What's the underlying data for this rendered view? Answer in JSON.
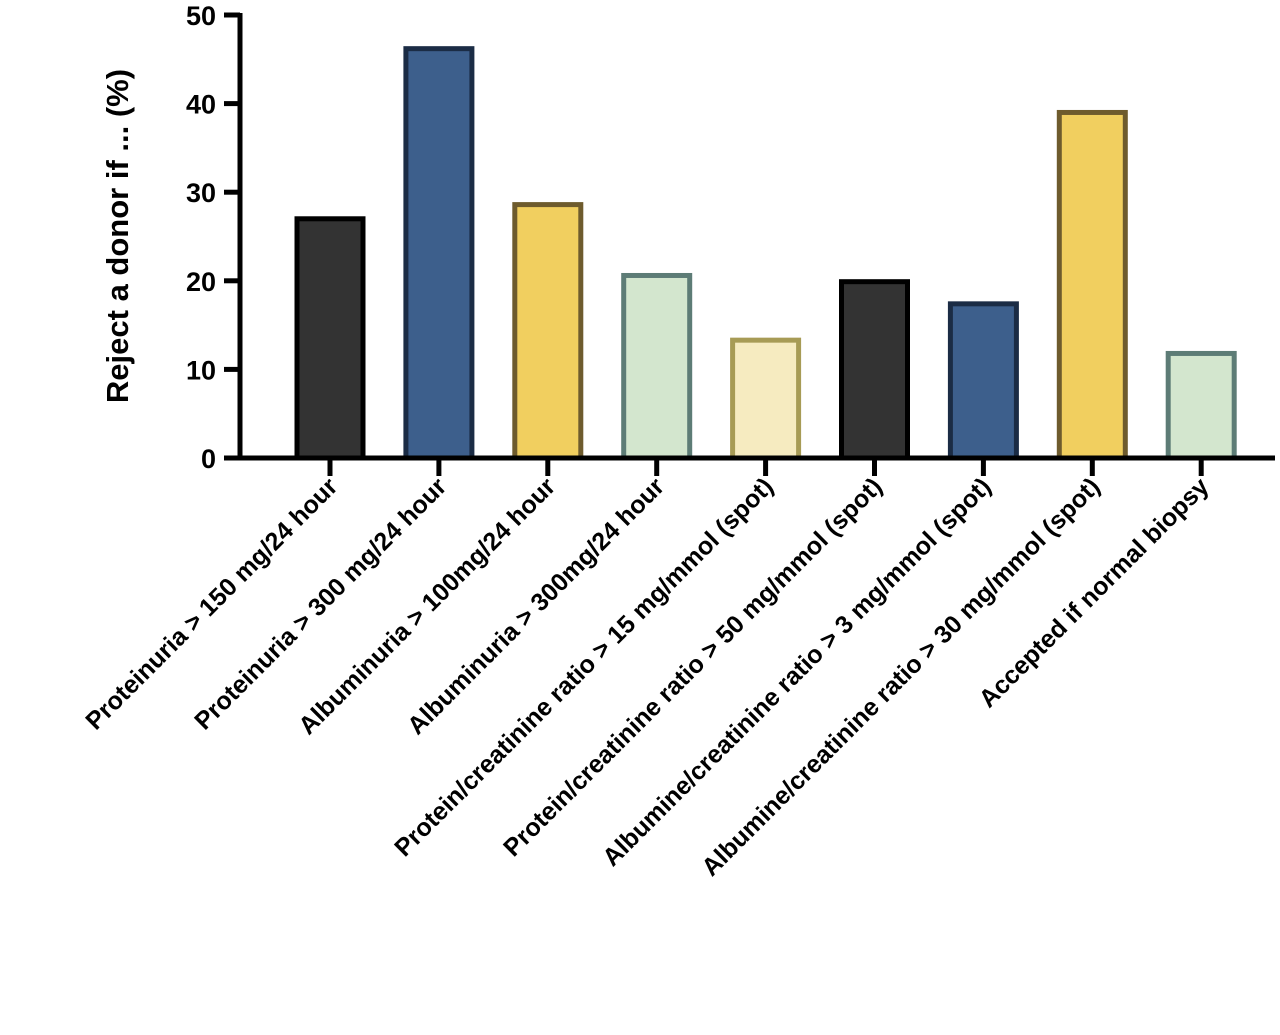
{
  "chart_data": {
    "type": "bar",
    "title": "",
    "xlabel": "",
    "ylabel": "Reject a donor if ... (%)",
    "ylim": [
      0,
      50
    ],
    "yticks": [
      0,
      10,
      20,
      30,
      40,
      50
    ],
    "grid": false,
    "categories": [
      "Proteinuria > 150 mg/24 hour",
      "Proteinuria > 300 mg/24 hour",
      "Albuminuria > 100mg/24 hour",
      "Albuminuria > 300mg/24 hour",
      "Protein/creatinine ratio > 15 mg/mmol (spot)",
      "Protein/creatinine ratio > 50 mg/mmol (spot)",
      "Albumine/creatinine ratio > 3 mg/mmol (spot)",
      "Albumine/creatinine ratio > 30 mg/mmol (spot)",
      "Accepted if normal biopsy"
    ],
    "values": [
      27,
      46.2,
      28.6,
      20.6,
      13.3,
      19.9,
      17.4,
      39,
      11.8
    ],
    "bar_fills": [
      "#333333",
      "#3d5f8c",
      "#f1cf5f",
      "#d3e6ce",
      "#f6ebc0",
      "#333333",
      "#3d5f8c",
      "#f1cf5f",
      "#d3e6ce"
    ],
    "bar_strokes": [
      "#000000",
      "#1b2c45",
      "#6e5b2d",
      "#5d7c76",
      "#a79b55",
      "#000000",
      "#1b2c45",
      "#6e5b2d",
      "#5d7c76"
    ]
  }
}
